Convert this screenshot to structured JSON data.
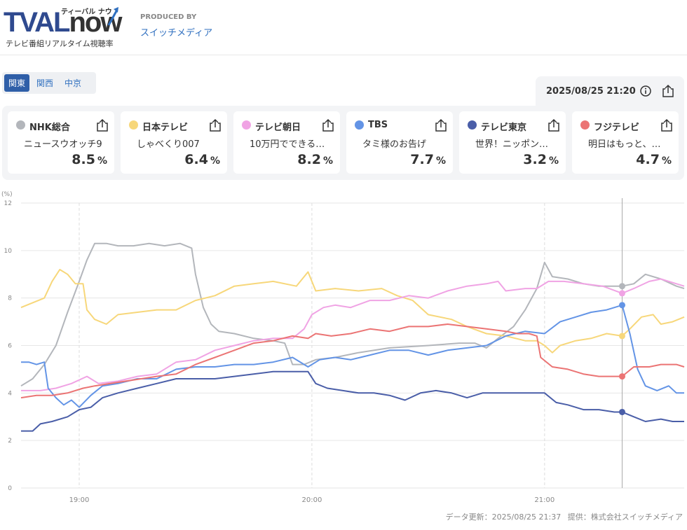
{
  "header": {
    "logo_main": "TVAL",
    "logo_now": "now",
    "logo_kana": "ティーバル ナウ",
    "logo_sub": "テレビ番組リアルタイム視聴率",
    "produced_by_label": "PRODUCED BY",
    "producer_name": "スイッチメディア"
  },
  "regions": [
    "関東",
    "関西",
    "中京"
  ],
  "selected_region": "関東",
  "current_time": "2025/08/25 21:20",
  "channels": [
    {
      "name": "NHK総合",
      "program": "ニュースウオッチ9",
      "rating": "8.5",
      "unit": "%",
      "color": "#b3b6bb"
    },
    {
      "name": "日本テレビ",
      "program": "しゃべくり007",
      "rating": "6.4",
      "unit": "%",
      "color": "#f7d77a"
    },
    {
      "name": "テレビ朝日",
      "program": "10万円でできる…",
      "rating": "8.2",
      "unit": "%",
      "color": "#f0a3e4"
    },
    {
      "name": "TBS",
      "program": "タミ様のお告げ",
      "rating": "7.7",
      "unit": "%",
      "color": "#6394e6"
    },
    {
      "name": "テレビ東京",
      "program": "世界！ニッポン…",
      "rating": "3.2",
      "unit": "%",
      "color": "#4a5ea8"
    },
    {
      "name": "フジテレビ",
      "program": "明日はもっと、…",
      "rating": "4.7",
      "unit": "%",
      "color": "#eb7474"
    }
  ],
  "chart_data": {
    "type": "line",
    "y_unit_label": "(%)",
    "ylim": [
      0,
      12
    ],
    "yticks": [
      0,
      2,
      4,
      6,
      8,
      10,
      12
    ],
    "xlim_minutes": [
      1125,
      1296
    ],
    "xticks": [
      {
        "minute": 1140,
        "label": "19:00"
      },
      {
        "minute": 1200,
        "label": "20:00"
      },
      {
        "minute": 1260,
        "label": "21:00"
      }
    ],
    "cursor_minute": 1280,
    "grid": true,
    "series": [
      {
        "name": "NHK総合",
        "color": "#b3b6bb",
        "points": [
          [
            1125,
            4.3
          ],
          [
            1128,
            4.6
          ],
          [
            1131,
            5.2
          ],
          [
            1134,
            6.0
          ],
          [
            1137,
            7.4
          ],
          [
            1140,
            8.7
          ],
          [
            1142,
            9.6
          ],
          [
            1144,
            10.3
          ],
          [
            1147,
            10.3
          ],
          [
            1150,
            10.2
          ],
          [
            1154,
            10.2
          ],
          [
            1158,
            10.3
          ],
          [
            1162,
            10.2
          ],
          [
            1166,
            10.3
          ],
          [
            1169,
            10.1
          ],
          [
            1170,
            9.0
          ],
          [
            1172,
            7.6
          ],
          [
            1174,
            6.9
          ],
          [
            1176,
            6.6
          ],
          [
            1180,
            6.5
          ],
          [
            1185,
            6.3
          ],
          [
            1190,
            6.2
          ],
          [
            1193,
            6.1
          ],
          [
            1195,
            5.2
          ],
          [
            1198,
            5.2
          ],
          [
            1201,
            5.4
          ],
          [
            1206,
            5.5
          ],
          [
            1212,
            5.7
          ],
          [
            1220,
            5.9
          ],
          [
            1230,
            6.0
          ],
          [
            1238,
            6.1
          ],
          [
            1242,
            6.1
          ],
          [
            1245,
            5.9
          ],
          [
            1248,
            6.3
          ],
          [
            1252,
            6.8
          ],
          [
            1255,
            7.5
          ],
          [
            1258,
            8.4
          ],
          [
            1260,
            9.5
          ],
          [
            1262,
            8.9
          ],
          [
            1266,
            8.8
          ],
          [
            1270,
            8.6
          ],
          [
            1274,
            8.5
          ],
          [
            1278,
            8.5
          ],
          [
            1280,
            8.5
          ],
          [
            1283,
            8.6
          ],
          [
            1286,
            9.0
          ],
          [
            1290,
            8.8
          ],
          [
            1294,
            8.5
          ],
          [
            1296,
            8.4
          ]
        ]
      },
      {
        "name": "日本テレビ",
        "color": "#f7d77a",
        "points": [
          [
            1125,
            7.6
          ],
          [
            1128,
            7.8
          ],
          [
            1131,
            8.0
          ],
          [
            1133,
            8.7
          ],
          [
            1135,
            9.2
          ],
          [
            1137,
            9.0
          ],
          [
            1139,
            8.6
          ],
          [
            1141,
            8.6
          ],
          [
            1142,
            7.5
          ],
          [
            1144,
            7.1
          ],
          [
            1147,
            6.9
          ],
          [
            1150,
            7.3
          ],
          [
            1155,
            7.4
          ],
          [
            1160,
            7.5
          ],
          [
            1165,
            7.5
          ],
          [
            1170,
            7.9
          ],
          [
            1175,
            8.1
          ],
          [
            1180,
            8.5
          ],
          [
            1185,
            8.6
          ],
          [
            1190,
            8.7
          ],
          [
            1196,
            8.5
          ],
          [
            1199,
            9.1
          ],
          [
            1201,
            8.3
          ],
          [
            1206,
            8.4
          ],
          [
            1212,
            8.3
          ],
          [
            1218,
            8.4
          ],
          [
            1222,
            8.1
          ],
          [
            1226,
            7.9
          ],
          [
            1230,
            7.3
          ],
          [
            1236,
            7.1
          ],
          [
            1240,
            6.8
          ],
          [
            1245,
            6.5
          ],
          [
            1250,
            6.4
          ],
          [
            1255,
            6.2
          ],
          [
            1258,
            6.2
          ],
          [
            1260,
            6.0
          ],
          [
            1262,
            5.7
          ],
          [
            1264,
            6.0
          ],
          [
            1268,
            6.2
          ],
          [
            1272,
            6.3
          ],
          [
            1276,
            6.5
          ],
          [
            1280,
            6.4
          ],
          [
            1282,
            6.7
          ],
          [
            1285,
            7.2
          ],
          [
            1288,
            7.3
          ],
          [
            1290,
            6.9
          ],
          [
            1293,
            7.0
          ],
          [
            1296,
            7.2
          ]
        ]
      },
      {
        "name": "テレビ朝日",
        "color": "#f0a3e4",
        "points": [
          [
            1125,
            4.1
          ],
          [
            1130,
            4.1
          ],
          [
            1134,
            4.2
          ],
          [
            1138,
            4.4
          ],
          [
            1142,
            4.7
          ],
          [
            1145,
            4.4
          ],
          [
            1150,
            4.5
          ],
          [
            1155,
            4.7
          ],
          [
            1160,
            4.8
          ],
          [
            1165,
            5.3
          ],
          [
            1170,
            5.4
          ],
          [
            1175,
            5.8
          ],
          [
            1180,
            6.0
          ],
          [
            1185,
            6.2
          ],
          [
            1190,
            6.3
          ],
          [
            1195,
            6.3
          ],
          [
            1198,
            6.7
          ],
          [
            1200,
            7.3
          ],
          [
            1203,
            7.6
          ],
          [
            1206,
            7.7
          ],
          [
            1210,
            7.6
          ],
          [
            1215,
            7.9
          ],
          [
            1220,
            7.9
          ],
          [
            1225,
            8.1
          ],
          [
            1230,
            8.0
          ],
          [
            1235,
            8.3
          ],
          [
            1240,
            8.5
          ],
          [
            1245,
            8.6
          ],
          [
            1248,
            8.7
          ],
          [
            1250,
            8.3
          ],
          [
            1255,
            8.4
          ],
          [
            1258,
            8.4
          ],
          [
            1261,
            8.7
          ],
          [
            1265,
            8.7
          ],
          [
            1270,
            8.6
          ],
          [
            1275,
            8.5
          ],
          [
            1280,
            8.2
          ],
          [
            1283,
            8.4
          ],
          [
            1287,
            8.7
          ],
          [
            1290,
            8.8
          ],
          [
            1294,
            8.6
          ],
          [
            1296,
            8.5
          ]
        ]
      },
      {
        "name": "TBS",
        "color": "#6394e6",
        "points": [
          [
            1125,
            5.3
          ],
          [
            1127,
            5.3
          ],
          [
            1129,
            5.2
          ],
          [
            1131,
            5.3
          ],
          [
            1132,
            4.2
          ],
          [
            1134,
            3.8
          ],
          [
            1136,
            3.5
          ],
          [
            1138,
            3.7
          ],
          [
            1140,
            3.4
          ],
          [
            1143,
            3.9
          ],
          [
            1146,
            4.3
          ],
          [
            1150,
            4.4
          ],
          [
            1155,
            4.6
          ],
          [
            1160,
            4.6
          ],
          [
            1165,
            5.0
          ],
          [
            1170,
            5.1
          ],
          [
            1175,
            5.1
          ],
          [
            1180,
            5.2
          ],
          [
            1185,
            5.2
          ],
          [
            1190,
            5.3
          ],
          [
            1195,
            5.5
          ],
          [
            1199,
            5.1
          ],
          [
            1202,
            5.4
          ],
          [
            1206,
            5.5
          ],
          [
            1210,
            5.4
          ],
          [
            1215,
            5.6
          ],
          [
            1220,
            5.8
          ],
          [
            1225,
            5.8
          ],
          [
            1230,
            5.6
          ],
          [
            1235,
            5.8
          ],
          [
            1240,
            5.9
          ],
          [
            1245,
            6.0
          ],
          [
            1250,
            6.4
          ],
          [
            1255,
            6.6
          ],
          [
            1260,
            6.5
          ],
          [
            1264,
            7.0
          ],
          [
            1268,
            7.2
          ],
          [
            1272,
            7.4
          ],
          [
            1276,
            7.5
          ],
          [
            1280,
            7.7
          ],
          [
            1282,
            6.5
          ],
          [
            1284,
            5.0
          ],
          [
            1286,
            4.3
          ],
          [
            1289,
            4.1
          ],
          [
            1292,
            4.3
          ],
          [
            1294,
            4.0
          ],
          [
            1296,
            4.0
          ]
        ]
      },
      {
        "name": "テレビ東京",
        "color": "#4a5ea8",
        "points": [
          [
            1125,
            2.4
          ],
          [
            1128,
            2.4
          ],
          [
            1130,
            2.7
          ],
          [
            1133,
            2.8
          ],
          [
            1137,
            3.0
          ],
          [
            1140,
            3.3
          ],
          [
            1143,
            3.4
          ],
          [
            1146,
            3.8
          ],
          [
            1150,
            4.0
          ],
          [
            1155,
            4.2
          ],
          [
            1160,
            4.4
          ],
          [
            1165,
            4.6
          ],
          [
            1170,
            4.6
          ],
          [
            1175,
            4.6
          ],
          [
            1180,
            4.7
          ],
          [
            1185,
            4.8
          ],
          [
            1190,
            4.9
          ],
          [
            1195,
            4.9
          ],
          [
            1199,
            4.9
          ],
          [
            1201,
            4.4
          ],
          [
            1204,
            4.2
          ],
          [
            1208,
            4.1
          ],
          [
            1212,
            4.0
          ],
          [
            1216,
            4.0
          ],
          [
            1220,
            3.9
          ],
          [
            1224,
            3.7
          ],
          [
            1228,
            4.0
          ],
          [
            1232,
            4.1
          ],
          [
            1236,
            4.0
          ],
          [
            1240,
            3.8
          ],
          [
            1244,
            4.0
          ],
          [
            1248,
            4.0
          ],
          [
            1252,
            4.0
          ],
          [
            1256,
            4.0
          ],
          [
            1260,
            4.0
          ],
          [
            1263,
            3.6
          ],
          [
            1266,
            3.5
          ],
          [
            1270,
            3.3
          ],
          [
            1274,
            3.3
          ],
          [
            1278,
            3.2
          ],
          [
            1280,
            3.2
          ],
          [
            1283,
            3.0
          ],
          [
            1286,
            2.8
          ],
          [
            1290,
            2.9
          ],
          [
            1293,
            2.8
          ],
          [
            1296,
            2.8
          ]
        ]
      },
      {
        "name": "フジテレビ",
        "color": "#eb7474",
        "points": [
          [
            1125,
            3.8
          ],
          [
            1129,
            3.9
          ],
          [
            1133,
            3.9
          ],
          [
            1137,
            4.0
          ],
          [
            1141,
            4.2
          ],
          [
            1144,
            4.3
          ],
          [
            1148,
            4.4
          ],
          [
            1152,
            4.5
          ],
          [
            1156,
            4.6
          ],
          [
            1160,
            4.7
          ],
          [
            1165,
            4.8
          ],
          [
            1170,
            5.2
          ],
          [
            1175,
            5.5
          ],
          [
            1180,
            5.8
          ],
          [
            1185,
            6.1
          ],
          [
            1190,
            6.2
          ],
          [
            1195,
            6.4
          ],
          [
            1199,
            6.3
          ],
          [
            1201,
            6.5
          ],
          [
            1205,
            6.4
          ],
          [
            1210,
            6.5
          ],
          [
            1215,
            6.7
          ],
          [
            1220,
            6.6
          ],
          [
            1225,
            6.8
          ],
          [
            1230,
            6.8
          ],
          [
            1235,
            6.9
          ],
          [
            1240,
            6.8
          ],
          [
            1245,
            6.7
          ],
          [
            1250,
            6.6
          ],
          [
            1253,
            6.5
          ],
          [
            1256,
            6.5
          ],
          [
            1258,
            6.4
          ],
          [
            1259,
            5.5
          ],
          [
            1262,
            5.1
          ],
          [
            1266,
            5.0
          ],
          [
            1270,
            4.8
          ],
          [
            1274,
            4.7
          ],
          [
            1278,
            4.7
          ],
          [
            1280,
            4.7
          ],
          [
            1283,
            5.1
          ],
          [
            1287,
            5.1
          ],
          [
            1290,
            5.2
          ],
          [
            1294,
            5.2
          ],
          [
            1296,
            5.1
          ]
        ]
      }
    ]
  },
  "footer": {
    "updated": "データ更新：2025/08/25 21:37",
    "provider": "提供：株式会社スイッチメディア"
  }
}
